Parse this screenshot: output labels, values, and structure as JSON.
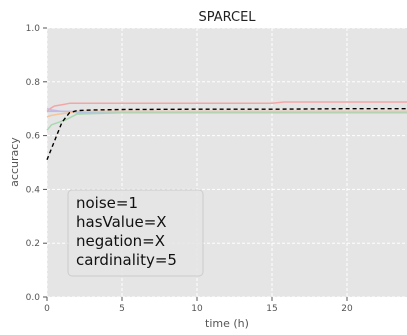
{
  "chart_data": {
    "type": "line",
    "title": "SPARCEL",
    "xlabel": "time (h)",
    "ylabel": "accuracy",
    "xlim": [
      0,
      24
    ],
    "ylim": [
      0.0,
      1.0
    ],
    "xticks": [
      0,
      5,
      10,
      15,
      20
    ],
    "yticks": [
      0.0,
      0.2,
      0.4,
      0.6,
      0.8,
      1.0
    ],
    "xtick_labels": [
      "0",
      "5",
      "10",
      "15",
      "20"
    ],
    "ytick_labels": [
      "0.0",
      "0.2",
      "0.4",
      "0.6",
      "0.8",
      "1.0"
    ],
    "grid": true,
    "background": "#e5e5e5",
    "annotation": [
      "noise=1",
      "hasValue=X",
      "negation=X",
      "cardinality=5"
    ],
    "series": [
      {
        "color": "#f4a6a6",
        "style": "solid",
        "x": [
          0.0,
          0.2,
          0.5,
          1.0,
          1.5,
          2.0,
          5.0,
          10.0,
          15.0,
          15.8,
          20.0,
          24.0
        ],
        "y": [
          0.69,
          0.7,
          0.71,
          0.715,
          0.72,
          0.72,
          0.72,
          0.72,
          0.72,
          0.725,
          0.725,
          0.725
        ]
      },
      {
        "color": "#a3c9e8",
        "style": "solid",
        "x": [
          0.0,
          0.3,
          0.8,
          1.5,
          2.0,
          5.0,
          9.0,
          9.5,
          15.0,
          20.0,
          24.0
        ],
        "y": [
          0.69,
          0.69,
          0.69,
          0.69,
          0.685,
          0.685,
          0.685,
          0.69,
          0.69,
          0.69,
          0.69
        ]
      },
      {
        "color": "#a8d8b0",
        "style": "solid",
        "x": [
          0.0,
          0.3,
          0.8,
          1.3,
          2.0,
          5.0,
          10.0,
          15.0,
          20.0,
          24.0
        ],
        "y": [
          0.62,
          0.64,
          0.65,
          0.66,
          0.68,
          0.685,
          0.685,
          0.685,
          0.685,
          0.685
        ]
      },
      {
        "color": "#c8b8e6",
        "style": "solid",
        "x": [
          0.0,
          0.3,
          1.0,
          2.0,
          5.0,
          10.0,
          15.0,
          20.0,
          24.0
        ],
        "y": [
          0.7,
          0.695,
          0.69,
          0.69,
          0.69,
          0.69,
          0.69,
          0.69,
          0.69
        ]
      },
      {
        "color": "#f6c49a",
        "style": "solid",
        "x": [
          0.0,
          0.3,
          0.8,
          1.5,
          2.0,
          5.0,
          10.0,
          15.0,
          20.0,
          24.0
        ],
        "y": [
          0.67,
          0.675,
          0.68,
          0.685,
          0.69,
          0.69,
          0.69,
          0.69,
          0.69,
          0.69
        ]
      },
      {
        "color": "#000000",
        "style": "dashed",
        "x": [
          0.0,
          0.5,
          1.0,
          1.5,
          2.0,
          3.0,
          5.0,
          10.0,
          15.0,
          20.0,
          24.0
        ],
        "y": [
          0.51,
          0.58,
          0.65,
          0.685,
          0.693,
          0.695,
          0.697,
          0.698,
          0.698,
          0.7,
          0.7
        ]
      }
    ]
  }
}
